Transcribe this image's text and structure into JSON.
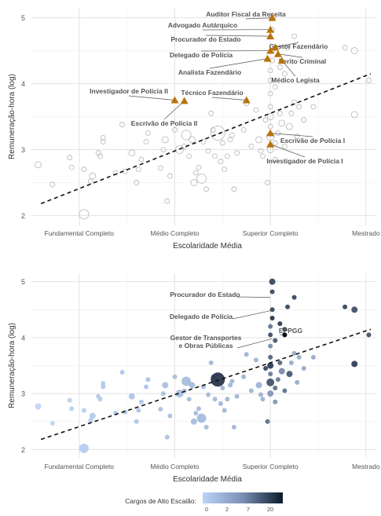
{
  "chart_data": [
    {
      "type": "scatter",
      "xlabel": "Escolaridade Média",
      "ylabel": "Remuneração-hora (log)",
      "categories": [
        "Fundamental Completo",
        "Médio Completo",
        "Superior Completo",
        "Mestrado"
      ],
      "xlim": [
        0.5,
        4.1
      ],
      "ylim": [
        1.85,
        5.15
      ],
      "yticks": [
        2,
        3,
        4,
        5
      ],
      "grid": true,
      "trend": {
        "x": [
          0.6,
          4.05
        ],
        "y": [
          2.18,
          4.15
        ]
      },
      "points": [
        {
          "x": 0.57,
          "y": 2.77,
          "s": 4
        },
        {
          "x": 0.72,
          "y": 2.47,
          "s": 3
        },
        {
          "x": 0.9,
          "y": 2.88,
          "s": 3
        },
        {
          "x": 0.92,
          "y": 2.73,
          "s": 3
        },
        {
          "x": 1.05,
          "y": 2.02,
          "s": 6
        },
        {
          "x": 1.05,
          "y": 2.7,
          "s": 3
        },
        {
          "x": 1.12,
          "y": 2.52,
          "s": 3
        },
        {
          "x": 1.14,
          "y": 2.6,
          "s": 4
        },
        {
          "x": 1.2,
          "y": 2.95,
          "s": 3
        },
        {
          "x": 1.22,
          "y": 2.9,
          "s": 3
        },
        {
          "x": 1.25,
          "y": 3.12,
          "s": 3
        },
        {
          "x": 1.25,
          "y": 3.18,
          "s": 3
        },
        {
          "x": 1.38,
          "y": 2.65,
          "s": 3
        },
        {
          "x": 1.45,
          "y": 3.38,
          "s": 3
        },
        {
          "x": 1.48,
          "y": 2.67,
          "s": 3
        },
        {
          "x": 1.55,
          "y": 2.95,
          "s": 4
        },
        {
          "x": 1.6,
          "y": 2.5,
          "s": 3
        },
        {
          "x": 1.62,
          "y": 2.7,
          "s": 3
        },
        {
          "x": 1.65,
          "y": 2.85,
          "s": 3
        },
        {
          "x": 1.7,
          "y": 3.12,
          "s": 3
        },
        {
          "x": 1.72,
          "y": 3.25,
          "s": 3
        },
        {
          "x": 1.85,
          "y": 2.72,
          "s": 3
        },
        {
          "x": 1.88,
          "y": 3.0,
          "s": 3
        },
        {
          "x": 1.9,
          "y": 3.15,
          "s": 4
        },
        {
          "x": 1.92,
          "y": 2.22,
          "s": 3
        },
        {
          "x": 1.95,
          "y": 2.6,
          "s": 3
        },
        {
          "x": 2.0,
          "y": 3.3,
          "s": 3
        },
        {
          "x": 2.05,
          "y": 3.0,
          "s": 5
        },
        {
          "x": 2.1,
          "y": 3.05,
          "s": 3
        },
        {
          "x": 2.12,
          "y": 3.22,
          "s": 6
        },
        {
          "x": 2.15,
          "y": 2.9,
          "s": 3
        },
        {
          "x": 2.18,
          "y": 3.15,
          "s": 4
        },
        {
          "x": 2.2,
          "y": 2.5,
          "s": 4
        },
        {
          "x": 2.22,
          "y": 2.65,
          "s": 3
        },
        {
          "x": 2.25,
          "y": 2.73,
          "s": 3
        },
        {
          "x": 2.28,
          "y": 2.56,
          "s": 6
        },
        {
          "x": 2.3,
          "y": 3.12,
          "s": 3
        },
        {
          "x": 2.33,
          "y": 2.4,
          "s": 3
        },
        {
          "x": 2.35,
          "y": 2.98,
          "s": 3
        },
        {
          "x": 2.38,
          "y": 3.55,
          "s": 3
        },
        {
          "x": 2.4,
          "y": 3.3,
          "s": 3
        },
        {
          "x": 2.42,
          "y": 2.9,
          "s": 3
        },
        {
          "x": 2.45,
          "y": 3.25,
          "s": 9
        },
        {
          "x": 2.48,
          "y": 2.82,
          "s": 3
        },
        {
          "x": 2.5,
          "y": 3.1,
          "s": 3
        },
        {
          "x": 2.52,
          "y": 2.7,
          "s": 3
        },
        {
          "x": 2.55,
          "y": 2.9,
          "s": 3
        },
        {
          "x": 2.58,
          "y": 3.15,
          "s": 3
        },
        {
          "x": 2.6,
          "y": 3.22,
          "s": 3
        },
        {
          "x": 2.62,
          "y": 2.4,
          "s": 3
        },
        {
          "x": 2.65,
          "y": 2.95,
          "s": 3
        },
        {
          "x": 2.72,
          "y": 3.3,
          "s": 3
        },
        {
          "x": 2.75,
          "y": 3.7,
          "s": 3
        },
        {
          "x": 2.8,
          "y": 3.05,
          "s": 3
        },
        {
          "x": 2.85,
          "y": 3.6,
          "s": 3
        },
        {
          "x": 2.88,
          "y": 3.15,
          "s": 4
        },
        {
          "x": 2.9,
          "y": 2.98,
          "s": 3
        },
        {
          "x": 2.92,
          "y": 2.9,
          "s": 3
        },
        {
          "x": 2.95,
          "y": 3.45,
          "s": 3
        },
        {
          "x": 2.97,
          "y": 2.5,
          "s": 3
        },
        {
          "x": 3.0,
          "y": 3.0,
          "s": 4
        },
        {
          "x": 3.0,
          "y": 3.2,
          "s": 5
        },
        {
          "x": 3.0,
          "y": 3.35,
          "s": 3
        },
        {
          "x": 3.0,
          "y": 3.5,
          "s": 4
        },
        {
          "x": 3.0,
          "y": 3.65,
          "s": 3
        },
        {
          "x": 3.0,
          "y": 3.85,
          "s": 3
        },
        {
          "x": 3.0,
          "y": 4.05,
          "s": 3
        },
        {
          "x": 3.0,
          "y": 4.2,
          "s": 3
        },
        {
          "x": 3.02,
          "y": 4.35,
          "s": 3
        },
        {
          "x": 3.02,
          "y": 4.5,
          "s": 3
        },
        {
          "x": 3.02,
          "y": 4.82,
          "s": 3
        },
        {
          "x": 3.02,
          "y": 5.0,
          "s": 4
        },
        {
          "x": 3.05,
          "y": 3.1,
          "s": 3
        },
        {
          "x": 3.05,
          "y": 2.85,
          "s": 3
        },
        {
          "x": 3.05,
          "y": 3.95,
          "s": 3
        },
        {
          "x": 3.08,
          "y": 3.25,
          "s": 3
        },
        {
          "x": 3.1,
          "y": 4.25,
          "s": 3
        },
        {
          "x": 3.1,
          "y": 3.55,
          "s": 3
        },
        {
          "x": 3.12,
          "y": 3.4,
          "s": 4
        },
        {
          "x": 3.15,
          "y": 4.15,
          "s": 3
        },
        {
          "x": 3.15,
          "y": 3.05,
          "s": 3
        },
        {
          "x": 3.18,
          "y": 4.55,
          "s": 3
        },
        {
          "x": 3.2,
          "y": 3.35,
          "s": 4
        },
        {
          "x": 3.22,
          "y": 3.55,
          "s": 3
        },
        {
          "x": 3.25,
          "y": 3.72,
          "s": 3
        },
        {
          "x": 3.25,
          "y": 4.72,
          "s": 3
        },
        {
          "x": 3.28,
          "y": 3.2,
          "s": 3
        },
        {
          "x": 3.3,
          "y": 3.65,
          "s": 3
        },
        {
          "x": 3.35,
          "y": 3.45,
          "s": 3
        },
        {
          "x": 3.45,
          "y": 3.65,
          "s": 3
        },
        {
          "x": 3.78,
          "y": 4.55,
          "s": 3
        },
        {
          "x": 3.88,
          "y": 4.5,
          "s": 4
        },
        {
          "x": 3.88,
          "y": 3.53,
          "s": 4
        },
        {
          "x": 4.03,
          "y": 4.05,
          "s": 3
        }
      ],
      "highlighted": [
        {
          "name": "Auditor Fiscal da Receita",
          "x": 3.02,
          "y": 5.0
        },
        {
          "name": "Advogado Autárquico",
          "x": 3.0,
          "y": 4.82
        },
        {
          "name": "Procurador do Estado",
          "x": 3.0,
          "y": 4.72
        },
        {
          "name": "Gestor Fazendário",
          "x": 3.05,
          "y": 4.55
        },
        {
          "name": "Delegado de Polícia",
          "x": 3.0,
          "y": 4.5
        },
        {
          "name": "Perito Criminal",
          "x": 3.08,
          "y": 4.45
        },
        {
          "name": "Analista Fazendário",
          "x": 2.97,
          "y": 4.38
        },
        {
          "name": "Médico Legista",
          "x": 3.12,
          "y": 4.35
        },
        {
          "name": "Investigador de Polícia II",
          "x": 2.0,
          "y": 3.75
        },
        {
          "name": "Escrivão de Polícia II",
          "x": 2.1,
          "y": 3.74
        },
        {
          "name": "Técnico Fazendário",
          "x": 2.75,
          "y": 3.75
        },
        {
          "name": "Escrivão de Polícia I",
          "x": 3.0,
          "y": 3.25
        },
        {
          "name": "Investigador de Polícia I",
          "x": 3.0,
          "y": 3.08
        }
      ],
      "highlight_color": "#b8730e"
    },
    {
      "type": "scatter",
      "xlabel": "Escolaridade Média",
      "ylabel": "Remuneração-hora (log)",
      "categories": [
        "Fundamental Completo",
        "Médio Completo",
        "Superior Completo",
        "Mestrado"
      ],
      "xlim": [
        0.5,
        4.1
      ],
      "ylim": [
        1.85,
        5.15
      ],
      "yticks": [
        2,
        3,
        4,
        5
      ],
      "grid": true,
      "trend": {
        "x": [
          0.6,
          4.05
        ],
        "y": [
          2.18,
          4.15
        ]
      },
      "legend": {
        "title": "Cargos de Alto Escalão:",
        "ticks": [
          "0",
          "2",
          "7",
          "20"
        ],
        "placement": "bottom"
      },
      "color_low": "#bcd3f8",
      "color_high": "#0c1a2c",
      "labels": [
        {
          "name": "Procurador do Estado",
          "x": 3.0,
          "y": 4.72
        },
        {
          "name": "Delegado de Polícia",
          "x": 3.0,
          "y": 4.48
        },
        {
          "name": "EPPGG",
          "x": 3.15,
          "y": 4.05
        },
        {
          "name": "Gestor de Transportes\ne Obras Públicas",
          "x": 3.02,
          "y": 3.98
        }
      ]
    }
  ]
}
